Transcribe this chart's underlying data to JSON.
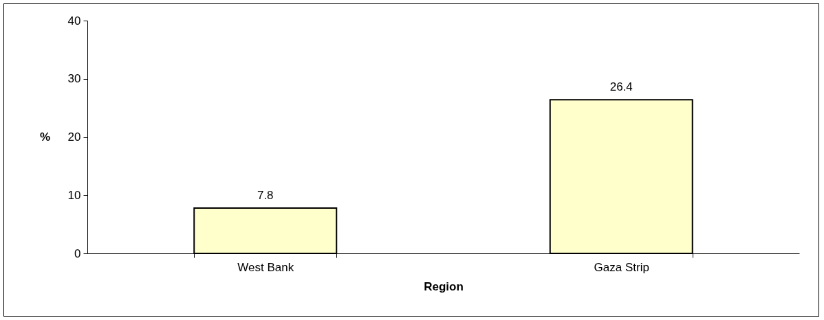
{
  "chart_data": {
    "type": "bar",
    "xlabel": "Region",
    "ylabel": "%",
    "categories": [
      "West Bank",
      "Gaza Strip"
    ],
    "values": [
      7.8,
      26.4
    ],
    "color": "#ffffcc",
    "ylim": [
      0,
      40
    ],
    "yticks": [
      0,
      10,
      20,
      30,
      40
    ],
    "data_labels": true
  }
}
